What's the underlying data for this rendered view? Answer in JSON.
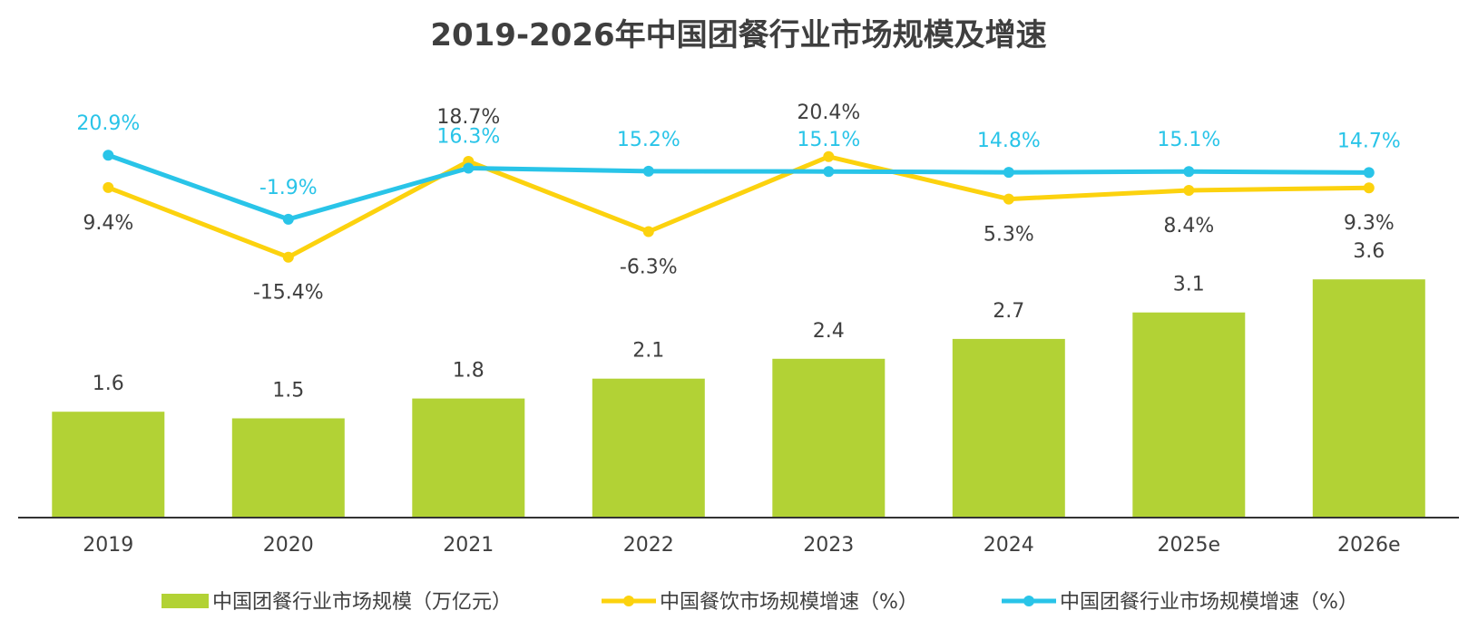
{
  "chart_data": {
    "type": "bar",
    "title": "2019-2026年中国团餐行业市场规模及增速",
    "categories": [
      "2019",
      "2020",
      "2021",
      "2022",
      "2023",
      "2024",
      "2025e",
      "2026e"
    ],
    "series": [
      {
        "name": "中国团餐行业市场规模（万亿元）",
        "kind": "bar",
        "values": [
          1.6,
          1.5,
          1.8,
          2.1,
          2.4,
          2.7,
          3.1,
          3.6
        ],
        "labels": [
          "1.6",
          "1.5",
          "1.8",
          "2.1",
          "2.4",
          "2.7",
          "3.1",
          "3.6"
        ]
      },
      {
        "name": "中国餐饮市场规模增速（%）",
        "kind": "line",
        "values": [
          9.4,
          -15.4,
          18.7,
          -6.3,
          20.4,
          5.3,
          8.4,
          9.3
        ],
        "labels": [
          "9.4%",
          "-15.4%",
          "18.7%",
          "-6.3%",
          "20.4%",
          "5.3%",
          "8.4%",
          "9.3%"
        ]
      },
      {
        "name": "中国团餐行业市场规模增速（%）",
        "kind": "line",
        "values": [
          20.9,
          -1.9,
          16.3,
          15.2,
          15.1,
          14.8,
          15.1,
          14.7
        ],
        "labels": [
          "20.9%",
          "-1.9%",
          "16.3%",
          "15.2%",
          "15.1%",
          "14.8%",
          "15.1%",
          "14.7%"
        ]
      }
    ],
    "bar_ylim": [
      0,
      4
    ],
    "line_ylim": [
      -20,
      30
    ],
    "legend_position": "bottom-center"
  },
  "colors": {
    "bar": "#b2d235",
    "restaurant_line": "#fcd20e",
    "group_meal_line": "#29c4e8",
    "axis": "#333333",
    "text": "#3f3f3f"
  }
}
